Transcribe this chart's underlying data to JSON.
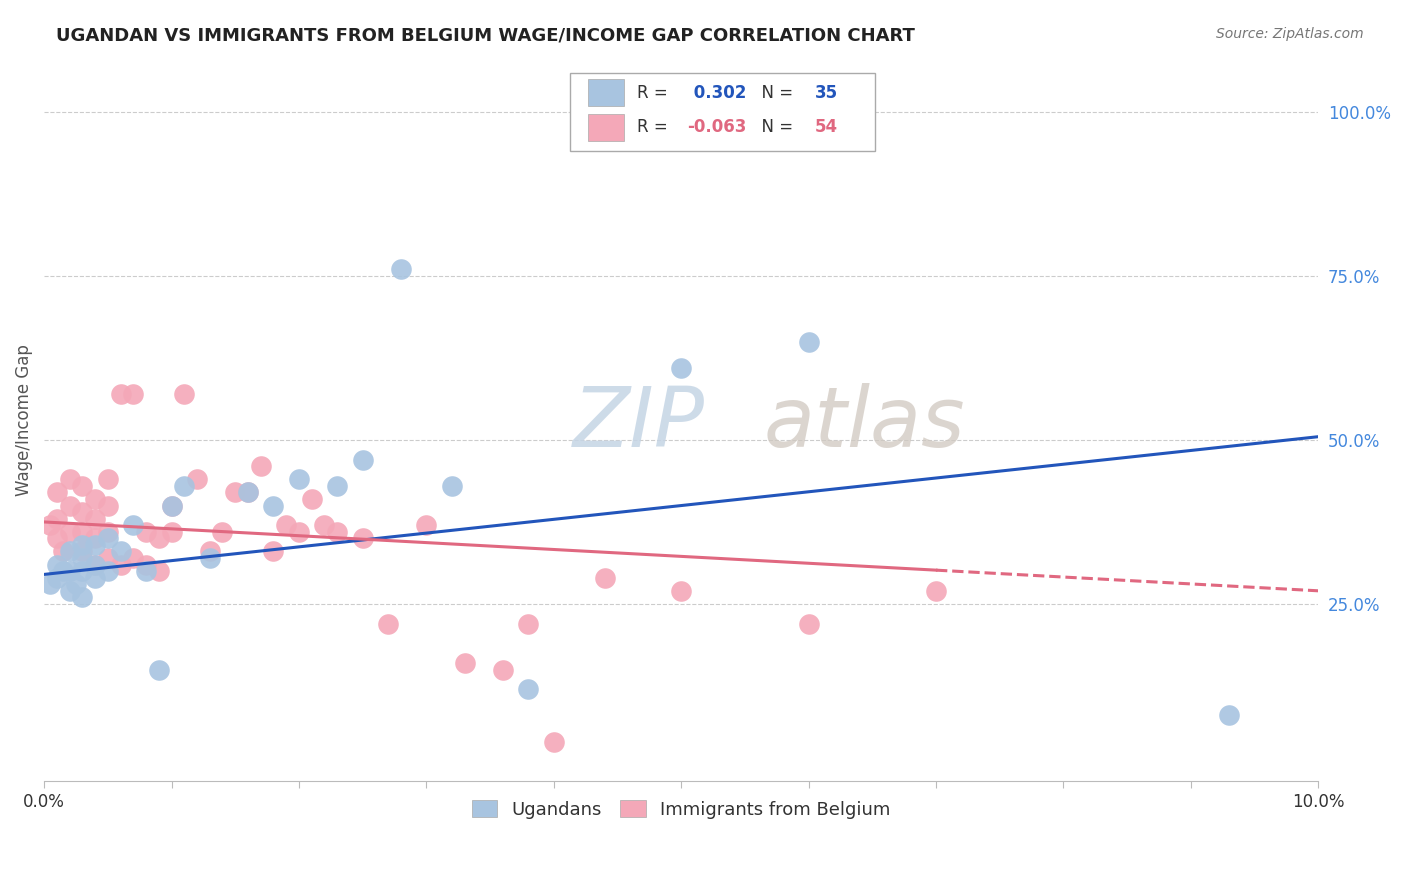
{
  "title": "UGANDAN VS IMMIGRANTS FROM BELGIUM WAGE/INCOME GAP CORRELATION CHART",
  "source": "Source: ZipAtlas.com",
  "ylabel": "Wage/Income Gap",
  "yticks_right": [
    0.25,
    0.5,
    0.75,
    1.0
  ],
  "ytick_labels_right": [
    "25.0%",
    "50.0%",
    "75.0%",
    "100.0%"
  ],
  "xlim": [
    0.0,
    0.1
  ],
  "ylim": [
    -0.02,
    1.08
  ],
  "ugandan_R": 0.302,
  "ugandan_N": 35,
  "belgium_R": -0.063,
  "belgium_N": 54,
  "ugandan_color": "#a8c4e0",
  "belgium_color": "#f4a8b8",
  "ugandan_line_color": "#2255bb",
  "belgium_line_color": "#e06880",
  "background_color": "#ffffff",
  "grid_color": "#cccccc",
  "watermark_color": "#c8d8ea",
  "ugandan_x": [
    0.0005,
    0.001,
    0.001,
    0.0015,
    0.002,
    0.002,
    0.002,
    0.0025,
    0.003,
    0.003,
    0.003,
    0.003,
    0.004,
    0.004,
    0.004,
    0.005,
    0.005,
    0.006,
    0.007,
    0.008,
    0.009,
    0.01,
    0.011,
    0.013,
    0.016,
    0.018,
    0.02,
    0.023,
    0.025,
    0.028,
    0.032,
    0.038,
    0.05,
    0.06,
    0.093
  ],
  "ugandan_y": [
    0.28,
    0.29,
    0.31,
    0.3,
    0.27,
    0.3,
    0.33,
    0.28,
    0.3,
    0.32,
    0.34,
    0.26,
    0.31,
    0.29,
    0.34,
    0.3,
    0.35,
    0.33,
    0.37,
    0.3,
    0.15,
    0.4,
    0.43,
    0.32,
    0.42,
    0.4,
    0.44,
    0.43,
    0.47,
    0.76,
    0.43,
    0.12,
    0.61,
    0.65,
    0.08
  ],
  "belgium_x": [
    0.0005,
    0.001,
    0.001,
    0.001,
    0.0015,
    0.002,
    0.002,
    0.002,
    0.003,
    0.003,
    0.003,
    0.003,
    0.004,
    0.004,
    0.004,
    0.004,
    0.005,
    0.005,
    0.005,
    0.005,
    0.006,
    0.006,
    0.007,
    0.007,
    0.008,
    0.008,
    0.009,
    0.009,
    0.01,
    0.01,
    0.011,
    0.012,
    0.013,
    0.014,
    0.015,
    0.016,
    0.017,
    0.018,
    0.019,
    0.02,
    0.021,
    0.022,
    0.023,
    0.025,
    0.027,
    0.03,
    0.033,
    0.036,
    0.038,
    0.04,
    0.044,
    0.05,
    0.06,
    0.07
  ],
  "belgium_y": [
    0.37,
    0.35,
    0.38,
    0.42,
    0.33,
    0.36,
    0.4,
    0.44,
    0.33,
    0.36,
    0.39,
    0.43,
    0.31,
    0.35,
    0.38,
    0.41,
    0.32,
    0.36,
    0.4,
    0.44,
    0.31,
    0.57,
    0.57,
    0.32,
    0.31,
    0.36,
    0.3,
    0.35,
    0.36,
    0.4,
    0.57,
    0.44,
    0.33,
    0.36,
    0.42,
    0.42,
    0.46,
    0.33,
    0.37,
    0.36,
    0.41,
    0.37,
    0.36,
    0.35,
    0.22,
    0.37,
    0.16,
    0.15,
    0.22,
    0.04,
    0.29,
    0.27,
    0.22,
    0.27
  ]
}
